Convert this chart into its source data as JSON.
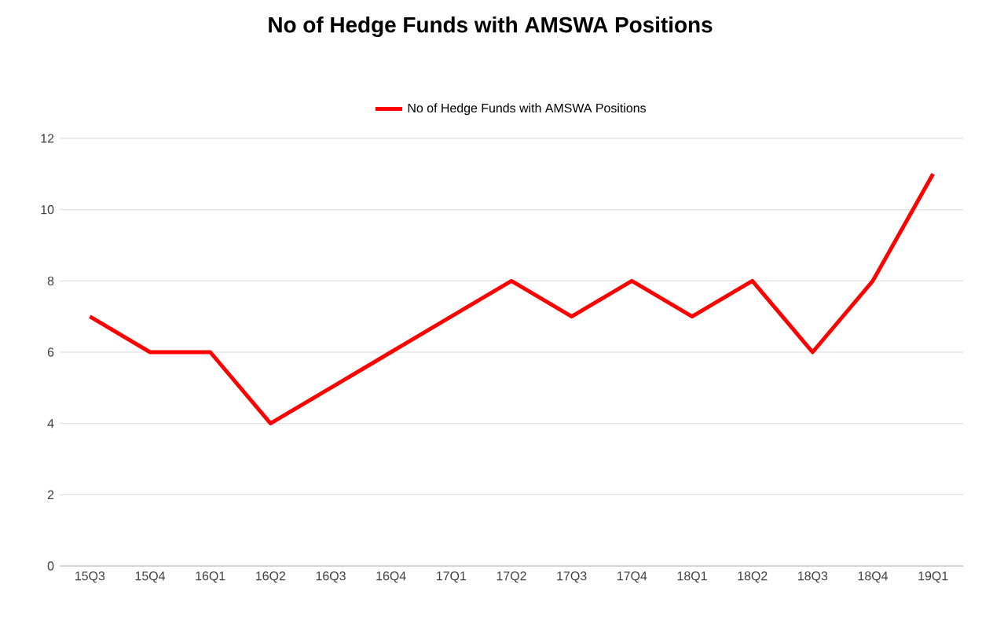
{
  "chart_data": {
    "type": "line",
    "title": "No of Hedge Funds with AMSWA Positions",
    "categories": [
      "15Q3",
      "15Q4",
      "16Q1",
      "16Q2",
      "16Q3",
      "16Q4",
      "17Q1",
      "17Q2",
      "17Q3",
      "17Q4",
      "18Q1",
      "18Q2",
      "18Q3",
      "18Q4",
      "19Q1"
    ],
    "series": [
      {
        "name": "No of Hedge Funds with AMSWA Positions",
        "color": "#ff0000",
        "values": [
          7,
          6,
          6,
          4,
          5,
          6,
          7,
          8,
          7,
          8,
          7,
          8,
          6,
          8,
          11
        ]
      }
    ],
    "ylim": [
      0,
      12
    ],
    "yticks": [
      0,
      2,
      4,
      6,
      8,
      10,
      12
    ],
    "grid": "y",
    "legend": "top",
    "marker": "none",
    "line_style": "solid"
  }
}
